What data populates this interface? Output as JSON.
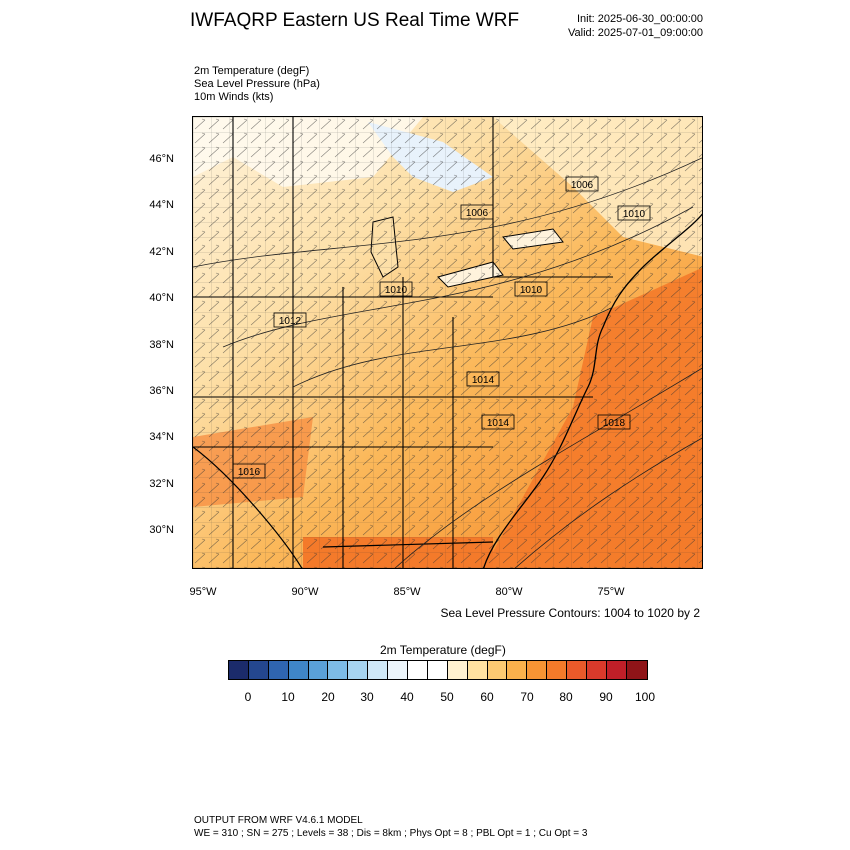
{
  "header": {
    "title": "IWFAQRP Eastern US Real Time WRF",
    "init": "Init: 2025-06-30_00:00:00",
    "valid": "Valid: 2025-07-01_09:00:00"
  },
  "fields": [
    "2m Temperature   (degF)",
    "Sea Level Pressure   (hPa)",
    "10m Winds   (kts)"
  ],
  "map": {
    "lat_labels": [
      "46°N",
      "44°N",
      "42°N",
      "40°N",
      "38°N",
      "36°N",
      "34°N",
      "32°N",
      "30°N"
    ],
    "lon_labels": [
      "95°W",
      "90°W",
      "85°W",
      "80°W",
      "75°W"
    ],
    "pressure_labels": [
      "1006",
      "1006",
      "1010",
      "1010",
      "1012",
      "1014",
      "1014",
      "1016",
      "1018",
      "1010"
    ],
    "slp_note": "Sea Level Pressure Contours: 1004 to 1020 by 2"
  },
  "colorbar": {
    "title": "2m Temperature  (degF)",
    "tick_labels": [
      "0",
      "10",
      "20",
      "30",
      "40",
      "50",
      "60",
      "70",
      "80",
      "90",
      "100"
    ],
    "colors": [
      "#1b2b6b",
      "#24478f",
      "#2f65b0",
      "#3f86c8",
      "#5aa0d8",
      "#7dbbe6",
      "#a6d4f0",
      "#cfe8f7",
      "#ecf5fb",
      "#ffffff",
      "#ffffff",
      "#fff1d0",
      "#ffe1a0",
      "#fdca72",
      "#fbb14c",
      "#f79434",
      "#f47a2a",
      "#ea5a2a",
      "#d93a2b",
      "#bf1f28",
      "#8f1418"
    ]
  },
  "footer": {
    "line1": "OUTPUT FROM WRF V4.6.1 MODEL",
    "line2": "WE = 310 ; SN = 275 ; Levels = 38 ; Dis = 8km ; Phys Opt = 8 ; PBL Opt = 1 ; Cu Opt = 3"
  }
}
